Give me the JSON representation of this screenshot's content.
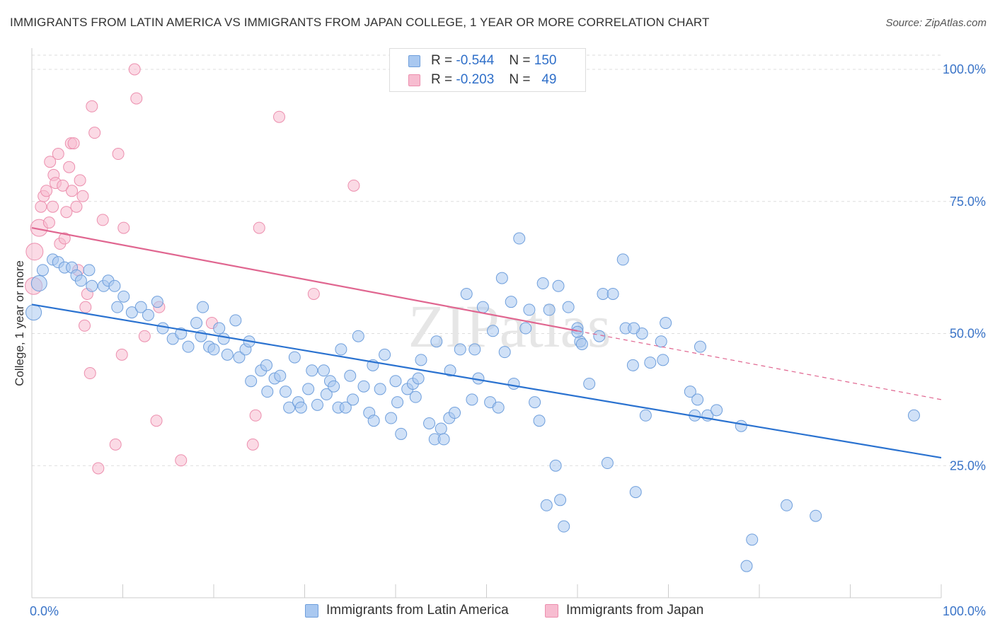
{
  "title": "IMMIGRANTS FROM LATIN AMERICA VS IMMIGRANTS FROM JAPAN COLLEGE, 1 YEAR OR MORE CORRELATION CHART",
  "source": "Source: ZipAtlas.com",
  "watermark": "ZIPatlas",
  "legend": {
    "row1": {
      "r_label": "R =",
      "r_value": "-0.544",
      "n_label": "N =",
      "n_value": "150"
    },
    "row2": {
      "r_label": "R =",
      "r_value": "-0.203",
      "n_label": "N =",
      "n_value": "49"
    }
  },
  "bottom_legend": {
    "series1": "Immigrants from Latin America",
    "series2": "Immigrants from Japan"
  },
  "colors": {
    "blue_fill": "#a9c8f0",
    "blue_stroke": "#6f9fdc",
    "blue_line": "#2a72d0",
    "pink_fill": "#f7bcd0",
    "pink_stroke": "#ec8fae",
    "pink_line": "#e06690",
    "axis_text": "#3a74c8",
    "grid": "#dddddd"
  },
  "chart_data": {
    "type": "scatter",
    "xlabel": "",
    "ylabel": "College, 1 year or more",
    "xlim": [
      0,
      100
    ],
    "ylim": [
      0,
      100
    ],
    "x_tick_labels": [
      "0.0%",
      "100.0%"
    ],
    "y_tick_labels": [
      "25.0%",
      "50.0%",
      "75.0%",
      "100.0%"
    ],
    "y_ticks": [
      25,
      50,
      75,
      100
    ],
    "grid": true,
    "legend_position": "top-center",
    "series": [
      {
        "name": "Immigrants from Latin America",
        "color": "#a9c8f0",
        "trend": {
          "x": [
            0,
            100
          ],
          "y": [
            55.5,
            26.5
          ]
        },
        "points": [
          [
            0.2,
            54.0
          ],
          [
            0.8,
            59.5
          ],
          [
            1.2,
            62.0
          ],
          [
            2.3,
            64.0
          ],
          [
            2.9,
            63.5
          ],
          [
            3.6,
            62.5
          ],
          [
            4.4,
            62.5
          ],
          [
            4.9,
            61.0
          ],
          [
            5.4,
            60.0
          ],
          [
            6.3,
            62.0
          ],
          [
            6.6,
            59.0
          ],
          [
            7.9,
            59.0
          ],
          [
            8.4,
            60.0
          ],
          [
            9.1,
            59.0
          ],
          [
            9.4,
            55.0
          ],
          [
            10.1,
            57.0
          ],
          [
            11.0,
            54.0
          ],
          [
            12.0,
            55.0
          ],
          [
            12.8,
            53.5
          ],
          [
            13.8,
            56.0
          ],
          [
            14.4,
            51.0
          ],
          [
            15.5,
            49.0
          ],
          [
            16.4,
            50.0
          ],
          [
            17.2,
            47.5
          ],
          [
            18.1,
            52.0
          ],
          [
            18.6,
            49.5
          ],
          [
            18.8,
            55.0
          ],
          [
            19.5,
            47.5
          ],
          [
            20.0,
            47.0
          ],
          [
            20.6,
            51.0
          ],
          [
            21.1,
            49.0
          ],
          [
            22.4,
            52.5
          ],
          [
            21.5,
            46.0
          ],
          [
            22.8,
            45.5
          ],
          [
            23.5,
            47.0
          ],
          [
            23.9,
            48.5
          ],
          [
            24.1,
            41.0
          ],
          [
            25.2,
            43.0
          ],
          [
            25.8,
            44.0
          ],
          [
            25.9,
            39.0
          ],
          [
            26.7,
            41.5
          ],
          [
            27.3,
            42.0
          ],
          [
            27.9,
            39.0
          ],
          [
            28.3,
            36.0
          ],
          [
            28.9,
            45.5
          ],
          [
            29.3,
            37.0
          ],
          [
            29.6,
            36.0
          ],
          [
            30.4,
            39.5
          ],
          [
            30.8,
            43.0
          ],
          [
            31.4,
            36.5
          ],
          [
            32.1,
            43.0
          ],
          [
            32.4,
            38.5
          ],
          [
            32.8,
            41.0
          ],
          [
            33.2,
            40.0
          ],
          [
            33.7,
            36.0
          ],
          [
            34.5,
            36.0
          ],
          [
            35.0,
            42.0
          ],
          [
            35.3,
            37.5
          ],
          [
            35.9,
            49.5
          ],
          [
            36.5,
            40.0
          ],
          [
            37.1,
            35.0
          ],
          [
            37.6,
            33.5
          ],
          [
            38.3,
            39.5
          ],
          [
            38.8,
            46.0
          ],
          [
            39.5,
            34.0
          ],
          [
            40.2,
            37.0
          ],
          [
            40.6,
            31.0
          ],
          [
            41.3,
            39.5
          ],
          [
            41.9,
            40.5
          ],
          [
            42.2,
            38.0
          ],
          [
            42.5,
            41.5
          ],
          [
            42.8,
            45.0
          ],
          [
            43.7,
            33.0
          ],
          [
            44.5,
            48.5
          ],
          [
            44.3,
            30.0
          ],
          [
            45.0,
            32.0
          ],
          [
            45.3,
            30.0
          ],
          [
            45.9,
            34.0
          ],
          [
            46.5,
            35.0
          ],
          [
            47.1,
            47.0
          ],
          [
            47.8,
            57.5
          ],
          [
            48.4,
            37.5
          ],
          [
            48.7,
            47.0
          ],
          [
            49.1,
            41.5
          ],
          [
            49.6,
            55.0
          ],
          [
            50.4,
            37.0
          ],
          [
            50.7,
            50.5
          ],
          [
            51.3,
            36.0
          ],
          [
            51.7,
            60.5
          ],
          [
            52.0,
            46.5
          ],
          [
            52.7,
            56.0
          ],
          [
            53.0,
            40.5
          ],
          [
            53.6,
            68.0
          ],
          [
            54.3,
            51.0
          ],
          [
            54.7,
            54.5
          ],
          [
            55.3,
            37.0
          ],
          [
            55.8,
            33.5
          ],
          [
            56.2,
            59.5
          ],
          [
            56.6,
            17.5
          ],
          [
            56.9,
            54.5
          ],
          [
            57.6,
            25.0
          ],
          [
            57.9,
            59.0
          ],
          [
            58.1,
            18.5
          ],
          [
            58.5,
            13.5
          ],
          [
            59.0,
            55.0
          ],
          [
            60.0,
            51.0
          ],
          [
            60.3,
            48.5
          ],
          [
            60.5,
            48.0
          ],
          [
            61.3,
            40.5
          ],
          [
            62.4,
            49.5
          ],
          [
            62.8,
            57.5
          ],
          [
            63.3,
            25.5
          ],
          [
            63.9,
            57.5
          ],
          [
            65.0,
            64.0
          ],
          [
            65.3,
            51.0
          ],
          [
            66.1,
            44.0
          ],
          [
            66.4,
            20.0
          ],
          [
            67.1,
            50.0
          ],
          [
            67.5,
            34.5
          ],
          [
            68.0,
            44.5
          ],
          [
            69.2,
            48.5
          ],
          [
            69.4,
            45.0
          ],
          [
            69.7,
            52.0
          ],
          [
            72.4,
            39.0
          ],
          [
            72.9,
            34.5
          ],
          [
            73.2,
            37.5
          ],
          [
            73.5,
            47.5
          ],
          [
            74.3,
            34.5
          ],
          [
            75.3,
            35.5
          ],
          [
            78.0,
            32.5
          ],
          [
            78.6,
            6.0
          ],
          [
            79.2,
            11.0
          ],
          [
            83.0,
            17.5
          ],
          [
            86.2,
            15.5
          ],
          [
            97.0,
            34.5
          ],
          [
            66.2,
            51.0
          ],
          [
            60.0,
            50.3
          ],
          [
            46.0,
            43.0
          ],
          [
            40.0,
            41.0
          ],
          [
            37.5,
            44.0
          ],
          [
            34.0,
            47.0
          ]
        ]
      },
      {
        "name": "Immigrants from Japan",
        "color": "#f7bcd0",
        "trend": {
          "x": [
            0,
            100
          ],
          "y": [
            70.0,
            37.5
          ],
          "solid_until": 60
        },
        "points": [
          [
            0.2,
            59.0
          ],
          [
            0.3,
            65.5
          ],
          [
            0.8,
            70.0
          ],
          [
            1.0,
            74.0
          ],
          [
            1.3,
            76.0
          ],
          [
            1.6,
            77.0
          ],
          [
            1.9,
            71.0
          ],
          [
            2.0,
            82.5
          ],
          [
            2.3,
            74.0
          ],
          [
            2.4,
            80.0
          ],
          [
            2.6,
            78.5
          ],
          [
            2.9,
            84.0
          ],
          [
            3.1,
            67.0
          ],
          [
            3.4,
            78.0
          ],
          [
            3.6,
            68.0
          ],
          [
            3.8,
            73.0
          ],
          [
            4.1,
            81.5
          ],
          [
            4.3,
            86.0
          ],
          [
            4.4,
            77.0
          ],
          [
            4.6,
            86.0
          ],
          [
            4.9,
            74.0
          ],
          [
            5.1,
            62.0
          ],
          [
            5.3,
            79.0
          ],
          [
            5.6,
            76.0
          ],
          [
            5.8,
            51.5
          ],
          [
            5.9,
            55.0
          ],
          [
            6.1,
            57.5
          ],
          [
            6.4,
            42.5
          ],
          [
            6.6,
            93.0
          ],
          [
            6.9,
            88.0
          ],
          [
            7.3,
            24.5
          ],
          [
            7.8,
            71.5
          ],
          [
            9.2,
            29.0
          ],
          [
            9.5,
            84.0
          ],
          [
            9.9,
            46.0
          ],
          [
            10.1,
            70.0
          ],
          [
            11.3,
            100.0
          ],
          [
            11.5,
            94.5
          ],
          [
            12.4,
            49.5
          ],
          [
            13.7,
            33.5
          ],
          [
            14.0,
            55.0
          ],
          [
            16.4,
            26.0
          ],
          [
            19.8,
            52.0
          ],
          [
            24.3,
            29.0
          ],
          [
            24.6,
            34.5
          ],
          [
            25.0,
            70.0
          ],
          [
            27.2,
            91.0
          ],
          [
            31.0,
            57.5
          ],
          [
            35.4,
            78.0
          ]
        ]
      }
    ]
  }
}
